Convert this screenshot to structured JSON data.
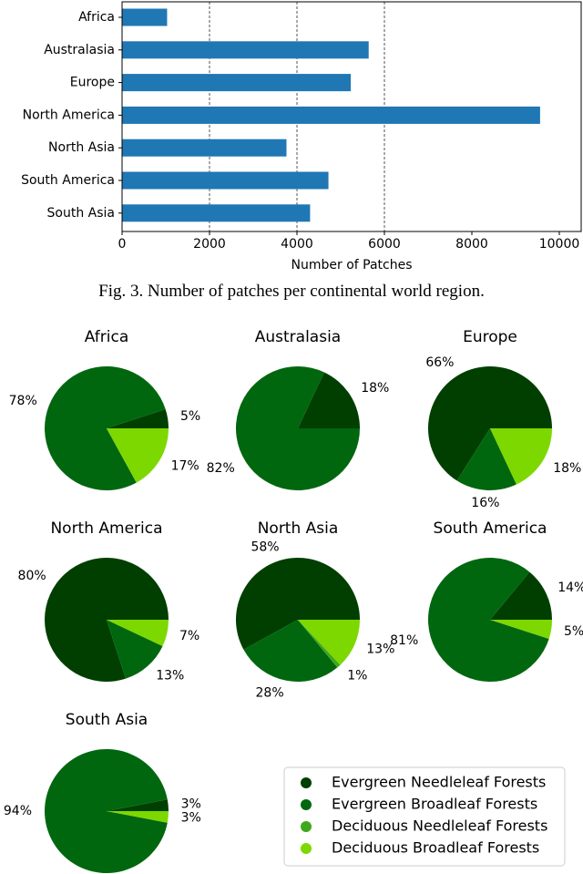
{
  "figure_caption": "Fig. 3.  Number of patches per continental world region.",
  "colors": {
    "bar": "#1f77b4",
    "Evergreen Needleleaf Forests": "#003f00",
    "Evergreen Broadleaf Forests": "#00670f",
    "Deciduous Needleleaf Forests": "#3fa71c",
    "Deciduous Broadleaf Forests": "#7dd800"
  },
  "chart_data": [
    {
      "type": "bar",
      "orientation": "horizontal",
      "categories": [
        "Africa",
        "Australasia",
        "Europe",
        "North America",
        "North Asia",
        "South America",
        "South Asia"
      ],
      "values": [
        1030,
        5640,
        5230,
        9560,
        3760,
        4720,
        4300
      ],
      "xlabel": "Number of Patches",
      "ylabel": "",
      "xlim": [
        0,
        10500
      ],
      "xticks": [
        0,
        2000,
        4000,
        6000,
        8000,
        10000
      ],
      "grid": "vertical dashed at 2000, 4000, 6000"
    },
    {
      "type": "pie",
      "legend": {
        "placement": "bottom-right",
        "entries": [
          "Evergreen Needleleaf Forests",
          "Evergreen Broadleaf Forests",
          "Deciduous Needleleaf Forests",
          "Deciduous Broadleaf Forests"
        ]
      },
      "pies": [
        {
          "title": "Africa",
          "slices": [
            {
              "class": "Evergreen Needleleaf Forests",
              "value": 5,
              "label": "5%"
            },
            {
              "class": "Evergreen Broadleaf Forests",
              "value": 78,
              "label": "78%"
            },
            {
              "class": "Deciduous Broadleaf Forests",
              "value": 17,
              "label": "17%"
            }
          ]
        },
        {
          "title": "Australasia",
          "slices": [
            {
              "class": "Evergreen Needleleaf Forests",
              "value": 18,
              "label": "18%"
            },
            {
              "class": "Evergreen Broadleaf Forests",
              "value": 82,
              "label": "82%"
            }
          ]
        },
        {
          "title": "Europe",
          "slices": [
            {
              "class": "Evergreen Needleleaf Forests",
              "value": 66,
              "label": "66%"
            },
            {
              "class": "Evergreen Broadleaf Forests",
              "value": 16,
              "label": "16%"
            },
            {
              "class": "Deciduous Broadleaf Forests",
              "value": 18,
              "label": "18%"
            }
          ]
        },
        {
          "title": "North America",
          "slices": [
            {
              "class": "Evergreen Needleleaf Forests",
              "value": 80,
              "label": "80%"
            },
            {
              "class": "Evergreen Broadleaf Forests",
              "value": 13,
              "label": "13%"
            },
            {
              "class": "Deciduous Broadleaf Forests",
              "value": 7,
              "label": "7%"
            }
          ]
        },
        {
          "title": "North Asia",
          "slices": [
            {
              "class": "Evergreen Needleleaf Forests",
              "value": 58,
              "label": "58%"
            },
            {
              "class": "Evergreen Broadleaf Forests",
              "value": 28,
              "label": "28%"
            },
            {
              "class": "Deciduous Needleleaf Forests",
              "value": 1,
              "label": "1%"
            },
            {
              "class": "Deciduous Broadleaf Forests",
              "value": 13,
              "label": "13%"
            }
          ]
        },
        {
          "title": "South America",
          "slices": [
            {
              "class": "Evergreen Needleleaf Forests",
              "value": 14,
              "label": "14%"
            },
            {
              "class": "Evergreen Broadleaf Forests",
              "value": 81,
              "label": "81%"
            },
            {
              "class": "Deciduous Broadleaf Forests",
              "value": 5,
              "label": "5%"
            }
          ]
        },
        {
          "title": "South Asia",
          "slices": [
            {
              "class": "Evergreen Needleleaf Forests",
              "value": 3,
              "label": "3%"
            },
            {
              "class": "Evergreen Broadleaf Forests",
              "value": 94,
              "label": "94%"
            },
            {
              "class": "Deciduous Broadleaf Forests",
              "value": 3,
              "label": "3%"
            }
          ]
        }
      ]
    }
  ]
}
